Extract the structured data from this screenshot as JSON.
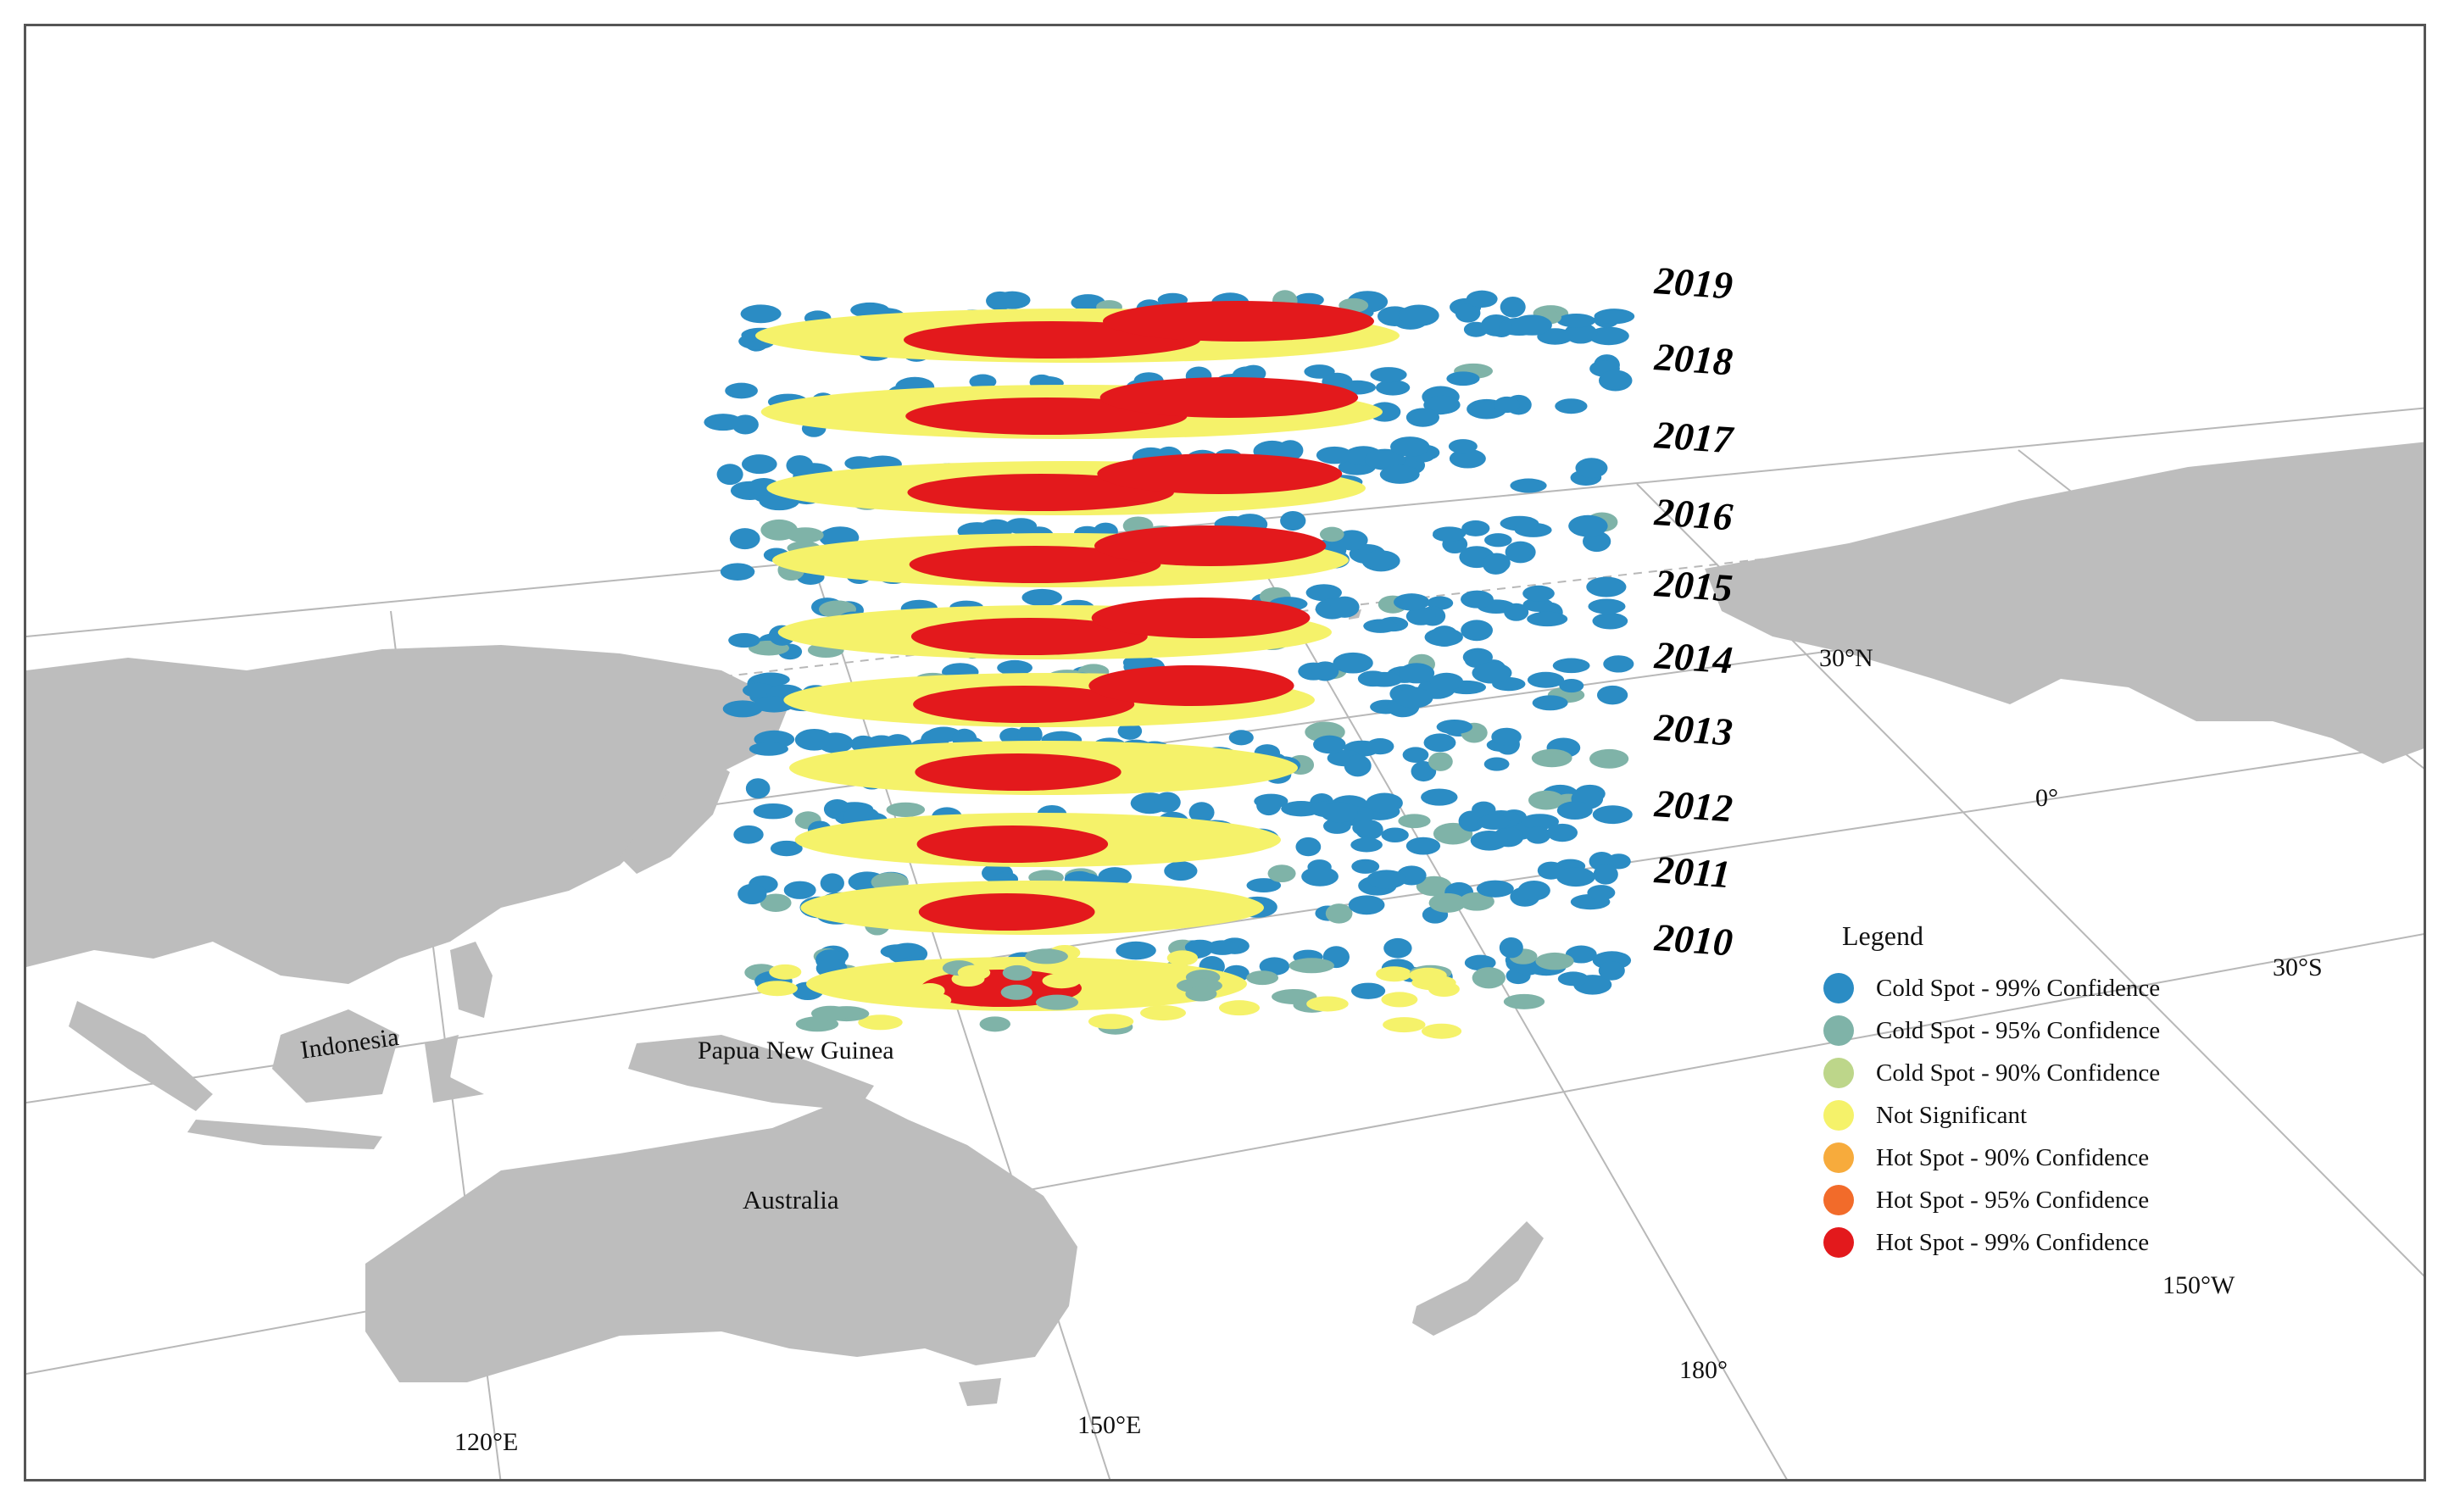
{
  "map": {
    "place_labels": {
      "indonesia": "Indonesia",
      "papua_new_guinea": "Papua New Guinea",
      "australia": "Australia"
    },
    "graticule_labels": {
      "lat_30n": "30°N",
      "lat_0": "0°",
      "lat_30s": "30°S",
      "lon_120e": "120°E",
      "lon_150e": "150°E",
      "lon_180": "180°",
      "lon_150w": "150°W"
    },
    "years": [
      "2019",
      "2018",
      "2017",
      "2016",
      "2015",
      "2014",
      "2013",
      "2012",
      "2011",
      "2010"
    ]
  },
  "legend": {
    "title": "Legend",
    "items": [
      {
        "label": "Cold Spot - 99% Confidence",
        "color": "#2b8cc4"
      },
      {
        "label": "Cold Spot - 95% Confidence",
        "color": "#7fb3a8"
      },
      {
        "label": "Cold Spot - 90% Confidence",
        "color": "#bdd68a"
      },
      {
        "label": "Not Significant",
        "color": "#f5f26a"
      },
      {
        "label": "Hot Spot - 90% Confidence",
        "color": "#f7ab3c"
      },
      {
        "label": "Hot Spot - 95% Confidence",
        "color": "#f26b2a"
      },
      {
        "label": "Hot Spot - 99% Confidence",
        "color": "#e3191c"
      }
    ]
  },
  "colors": {
    "land": "#bdbdbd",
    "graticule": "#b8b8b8",
    "cold_99": "#2b8cc4",
    "cold_95": "#7fb3a8",
    "not_significant": "#f5f26a",
    "hot_99": "#e3191c"
  }
}
